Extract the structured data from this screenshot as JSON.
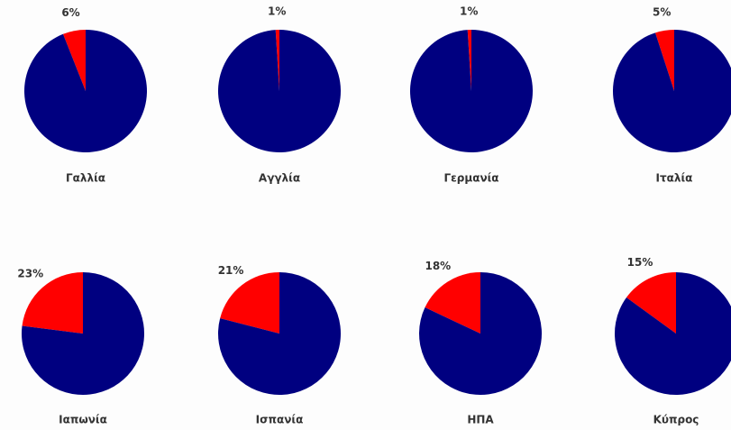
{
  "chart_data": [
    {
      "type": "pie",
      "title": "Γαλλία",
      "values": [
        6,
        94
      ],
      "value_labels": [
        "6%",
        null
      ],
      "colors": [
        "#ff0000",
        "#000080"
      ]
    },
    {
      "type": "pie",
      "title": "Αγγλία",
      "values": [
        1,
        99
      ],
      "value_labels": [
        "1%",
        null
      ],
      "colors": [
        "#ff0000",
        "#000080"
      ]
    },
    {
      "type": "pie",
      "title": "Γερμανία",
      "values": [
        1,
        99
      ],
      "value_labels": [
        "1%",
        null
      ],
      "colors": [
        "#ff0000",
        "#000080"
      ]
    },
    {
      "type": "pie",
      "title": "Ιταλία",
      "values": [
        5,
        95
      ],
      "value_labels": [
        "5%",
        null
      ],
      "colors": [
        "#ff0000",
        "#000080"
      ]
    },
    {
      "type": "pie",
      "title": "Ιαπωνία",
      "values": [
        23,
        77
      ],
      "value_labels": [
        "23%",
        null
      ],
      "colors": [
        "#ff0000",
        "#000080"
      ]
    },
    {
      "type": "pie",
      "title": "Ισπανία",
      "values": [
        21,
        79
      ],
      "value_labels": [
        "21%",
        null
      ],
      "colors": [
        "#ff0000",
        "#000080"
      ]
    },
    {
      "type": "pie",
      "title": "ΗΠΑ",
      "values": [
        18,
        82
      ],
      "value_labels": [
        "18%",
        null
      ],
      "colors": [
        "#ff0000",
        "#000080"
      ]
    },
    {
      "type": "pie",
      "title": "Κύπρος",
      "values": [
        15,
        85
      ],
      "value_labels": [
        "15%",
        null
      ],
      "colors": [
        "#ff0000",
        "#000080"
      ]
    }
  ]
}
